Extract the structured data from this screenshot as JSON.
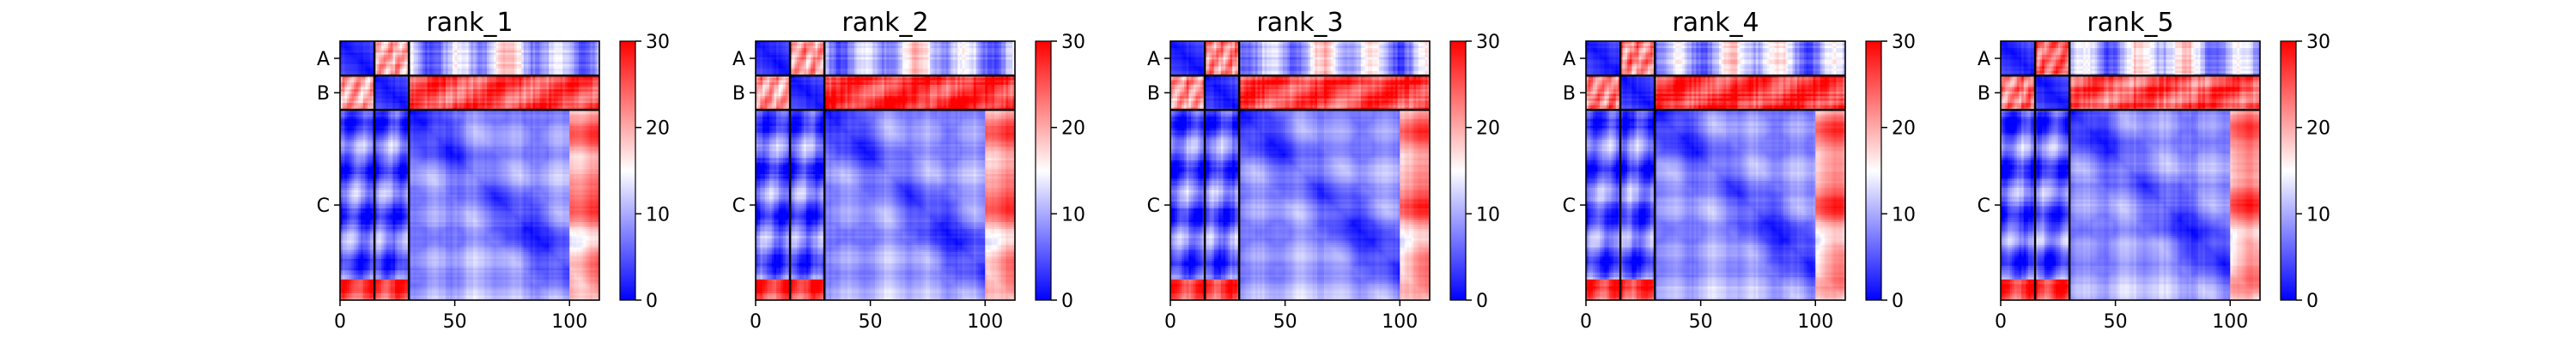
{
  "chart_data": {
    "type": "heatmap",
    "colormap": {
      "name": "bwr",
      "low": "#0000ff",
      "mid": "#ffffff",
      "high": "#ff0000"
    },
    "color_range": [
      0,
      30
    ],
    "colorbar_ticks": [
      "0",
      "10",
      "20",
      "30"
    ],
    "x_range": [
      0,
      113
    ],
    "x_ticks": [
      0,
      50,
      100
    ],
    "x_tick_labels": [
      "0",
      "50",
      "100"
    ],
    "chains": [
      {
        "label": "A",
        "start": 0,
        "end": 15
      },
      {
        "label": "B",
        "start": 15,
        "end": 30
      },
      {
        "label": "C",
        "start": 30,
        "end": 113
      }
    ],
    "panels": [
      {
        "title": "rank_1",
        "ab_error": 20.5,
        "bc_error": 25.5
      },
      {
        "title": "rank_2",
        "ab_error": 21,
        "bc_error": 27
      },
      {
        "title": "rank_3",
        "ab_error": 22,
        "bc_error": 26.5
      },
      {
        "title": "rank_4",
        "ab_error": 22.5,
        "bc_error": 26.5
      },
      {
        "title": "rank_5",
        "ab_error": 23.5,
        "bc_error": 25
      }
    ]
  }
}
